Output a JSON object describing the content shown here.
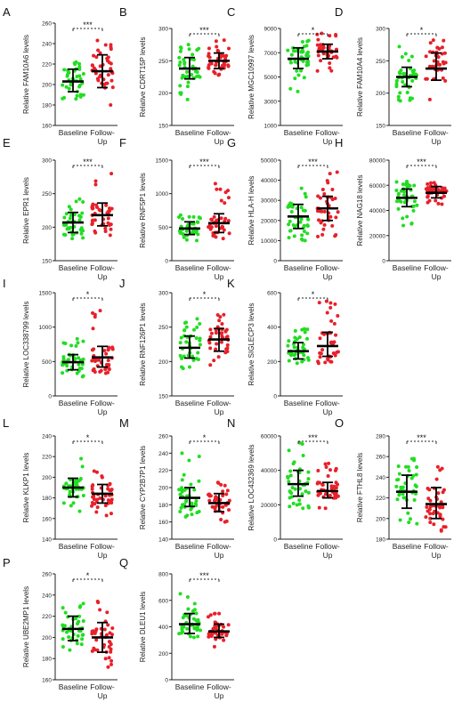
{
  "figure": {
    "colors": {
      "baseline": "#22dd22",
      "followup": "#e8202a",
      "bars": "#000000"
    }
  },
  "chart_data": [
    {
      "type": "scatter",
      "panel": "A",
      "ylabel": "Relative FAM10A6 levels",
      "ylim": [
        160,
        260
      ],
      "yticks": [
        160,
        180,
        200,
        220,
        240,
        260
      ],
      "ytick_labels": [
        "160",
        "180",
        "200",
        "220",
        "240",
        "260"
      ],
      "categories": [
        "Baseline",
        "Follow-Up"
      ],
      "significance": "***",
      "series": [
        {
          "name": "Baseline",
          "mean": 203,
          "sd_low": 193,
          "sd_high": 215,
          "min": 186,
          "max": 222,
          "n": 40
        },
        {
          "name": "Follow-Up",
          "mean": 213,
          "sd_low": 197,
          "sd_high": 229,
          "min": 180,
          "max": 243,
          "n": 40
        }
      ]
    },
    {
      "type": "scatter",
      "panel": "B",
      "ylabel": "Relative CDRT15P levels",
      "ylim": [
        150,
        300
      ],
      "yticks": [
        150,
        200,
        250,
        300
      ],
      "ytick_labels": [
        "150",
        "200",
        "250",
        "300"
      ],
      "categories": [
        "Baseline",
        "Follow-Up"
      ],
      "significance": "***",
      "series": [
        {
          "name": "Baseline",
          "mean": 238,
          "sd_low": 222,
          "sd_high": 255,
          "min": 190,
          "max": 275,
          "n": 40
        },
        {
          "name": "Follow-Up",
          "mean": 250,
          "sd_low": 238,
          "sd_high": 262,
          "min": 228,
          "max": 282,
          "n": 40
        }
      ]
    },
    {
      "type": "scatter",
      "panel": "C",
      "ylabel": "Relative MGC10997 levels",
      "ylim": [
        1000,
        9000
      ],
      "yticks": [
        1000,
        3000,
        5000,
        7000,
        9000
      ],
      "ytick_labels": [
        "1000",
        "3000",
        "5000",
        "7000",
        "9000"
      ],
      "categories": [
        "Baseline",
        "Follow-Up"
      ],
      "significance": "*",
      "series": [
        {
          "name": "Baseline",
          "mean": 6500,
          "sd_low": 5700,
          "sd_high": 7400,
          "min": 3800,
          "max": 8000,
          "n": 40
        },
        {
          "name": "Follow-Up",
          "mean": 7100,
          "sd_low": 6500,
          "sd_high": 7700,
          "min": 5500,
          "max": 8600,
          "n": 40
        }
      ]
    },
    {
      "type": "scatter",
      "panel": "D",
      "ylabel": "Relative FAM10A4 levels",
      "ylim": [
        150,
        300
      ],
      "yticks": [
        150,
        200,
        250,
        300
      ],
      "ytick_labels": [
        "150",
        "200",
        "250",
        "300"
      ],
      "categories": [
        "Baseline",
        "Follow-Up"
      ],
      "significance": "*",
      "series": [
        {
          "name": "Baseline",
          "mean": 225,
          "sd_low": 210,
          "sd_high": 240,
          "min": 188,
          "max": 272,
          "n": 40
        },
        {
          "name": "Follow-Up",
          "mean": 238,
          "sd_low": 220,
          "sd_high": 262,
          "min": 190,
          "max": 282,
          "n": 40
        }
      ]
    },
    {
      "type": "scatter",
      "panel": "E",
      "ylabel": "Relative EPR1 levels",
      "ylim": [
        150,
        300
      ],
      "yticks": [
        150,
        200,
        250,
        300
      ],
      "ytick_labels": [
        "150",
        "200",
        "250",
        "300"
      ],
      "categories": [
        "Baseline",
        "Follow-Up"
      ],
      "significance": "***",
      "series": [
        {
          "name": "Baseline",
          "mean": 207,
          "sd_low": 192,
          "sd_high": 222,
          "min": 183,
          "max": 242,
          "n": 40
        },
        {
          "name": "Follow-Up",
          "mean": 218,
          "sd_low": 202,
          "sd_high": 236,
          "min": 188,
          "max": 280,
          "n": 40
        }
      ]
    },
    {
      "type": "scatter",
      "panel": "F",
      "ylabel": "Relative RNF5P1 levels",
      "ylim": [
        0,
        1500
      ],
      "yticks": [
        0,
        500,
        1000,
        1500
      ],
      "ytick_labels": [
        "0",
        "500",
        "1000",
        "1500"
      ],
      "categories": [
        "Baseline",
        "Follow-Up"
      ],
      "significance": "***",
      "series": [
        {
          "name": "Baseline",
          "mean": 480,
          "sd_low": 390,
          "sd_high": 580,
          "min": 300,
          "max": 680,
          "n": 40
        },
        {
          "name": "Follow-Up",
          "mean": 560,
          "sd_low": 420,
          "sd_high": 700,
          "min": 330,
          "max": 1150,
          "n": 40
        }
      ]
    },
    {
      "type": "scatter",
      "panel": "G",
      "ylabel": "Relative HLA-H levels",
      "ylim": [
        0,
        50000
      ],
      "yticks": [
        0,
        10000,
        20000,
        30000,
        40000,
        50000
      ],
      "ytick_labels": [
        "0",
        "10000",
        "20000",
        "30000",
        "40000",
        "50000"
      ],
      "categories": [
        "Baseline",
        "Follow-Up"
      ],
      "significance": "***",
      "series": [
        {
          "name": "Baseline",
          "mean": 22000,
          "sd_low": 16000,
          "sd_high": 28000,
          "min": 10000,
          "max": 36000,
          "n": 40
        },
        {
          "name": "Follow-Up",
          "mean": 26000,
          "sd_low": 20000,
          "sd_high": 32000,
          "min": 12000,
          "max": 44000,
          "n": 40
        }
      ]
    },
    {
      "type": "scatter",
      "panel": "H",
      "ylabel": "Relative NAG18 levels",
      "ylim": [
        0,
        80000
      ],
      "yticks": [
        0,
        20000,
        40000,
        60000,
        80000
      ],
      "ytick_labels": [
        "0",
        "20000",
        "40000",
        "60000",
        "80000"
      ],
      "categories": [
        "Baseline",
        "Follow-Up"
      ],
      "significance": "***",
      "series": [
        {
          "name": "Baseline",
          "mean": 50000,
          "sd_low": 43000,
          "sd_high": 57000,
          "min": 28000,
          "max": 63000,
          "n": 40
        },
        {
          "name": "Follow-Up",
          "mean": 54000,
          "sd_low": 50000,
          "sd_high": 59000,
          "min": 45000,
          "max": 62000,
          "n": 40
        }
      ]
    },
    {
      "type": "scatter",
      "panel": "I",
      "ylabel": "Relative LOC338799 levels",
      "ylim": [
        0,
        1500
      ],
      "yticks": [
        0,
        500,
        1000,
        1500
      ],
      "ytick_labels": [
        "0",
        "500",
        "1000",
        "1500"
      ],
      "categories": [
        "Baseline",
        "Follow-Up"
      ],
      "significance": "*",
      "series": [
        {
          "name": "Baseline",
          "mean": 490,
          "sd_low": 380,
          "sd_high": 600,
          "min": 280,
          "max": 830,
          "n": 40
        },
        {
          "name": "Follow-Up",
          "mean": 560,
          "sd_low": 420,
          "sd_high": 720,
          "min": 330,
          "max": 1240,
          "n": 40
        }
      ]
    },
    {
      "type": "scatter",
      "panel": "J",
      "ylabel": "Relative RNF126P1 levels",
      "ylim": [
        150,
        300
      ],
      "yticks": [
        150,
        200,
        250,
        300
      ],
      "ytick_labels": [
        "150",
        "200",
        "250",
        "300"
      ],
      "categories": [
        "Baseline",
        "Follow-Up"
      ],
      "significance": "*",
      "series": [
        {
          "name": "Baseline",
          "mean": 220,
          "sd_low": 205,
          "sd_high": 237,
          "min": 190,
          "max": 262,
          "n": 40
        },
        {
          "name": "Follow-Up",
          "mean": 232,
          "sd_low": 215,
          "sd_high": 248,
          "min": 195,
          "max": 268,
          "n": 40
        }
      ]
    },
    {
      "type": "scatter",
      "panel": "K",
      "ylabel": "Relative SIGLECP3 levels",
      "ylim": [
        0,
        600
      ],
      "yticks": [
        0,
        200,
        400,
        600
      ],
      "ytick_labels": [
        "0",
        "200",
        "400",
        "600"
      ],
      "categories": [
        "Baseline",
        "Follow-Up"
      ],
      "significance": "*",
      "series": [
        {
          "name": "Baseline",
          "mean": 260,
          "sd_low": 215,
          "sd_high": 310,
          "min": 190,
          "max": 390,
          "n": 40
        },
        {
          "name": "Follow-Up",
          "mean": 290,
          "sd_low": 230,
          "sd_high": 370,
          "min": 190,
          "max": 550,
          "n": 40
        }
      ]
    },
    {
      "type": "scatter",
      "panel": "L",
      "ylabel": "Relative KLKP1 levels",
      "ylim": [
        140,
        240
      ],
      "yticks": [
        140,
        160,
        180,
        200,
        220,
        240
      ],
      "ytick_labels": [
        "140",
        "160",
        "180",
        "200",
        "220",
        "240"
      ],
      "categories": [
        "Baseline",
        "Follow-Up"
      ],
      "significance": "*",
      "series": [
        {
          "name": "Baseline",
          "mean": 190,
          "sd_low": 181,
          "sd_high": 199,
          "min": 167,
          "max": 218,
          "n": 40
        },
        {
          "name": "Follow-Up",
          "mean": 184,
          "sd_low": 175,
          "sd_high": 193,
          "min": 163,
          "max": 206,
          "n": 40
        }
      ]
    },
    {
      "type": "scatter",
      "panel": "M",
      "ylabel": "Relative CYP2B7P1 levels",
      "ylim": [
        140,
        260
      ],
      "yticks": [
        140,
        160,
        180,
        200,
        220,
        240,
        260
      ],
      "ytick_labels": [
        "140",
        "160",
        "180",
        "200",
        "220",
        "240",
        "260"
      ],
      "categories": [
        "Baseline",
        "Follow-Up"
      ],
      "significance": "*",
      "series": [
        {
          "name": "Baseline",
          "mean": 188,
          "sd_low": 178,
          "sd_high": 200,
          "min": 166,
          "max": 240,
          "n": 40
        },
        {
          "name": "Follow-Up",
          "mean": 182,
          "sd_low": 172,
          "sd_high": 193,
          "min": 160,
          "max": 206,
          "n": 40
        }
      ]
    },
    {
      "type": "scatter",
      "panel": "N",
      "ylabel": "Relative LOC432369 levels",
      "ylim": [
        0,
        60000
      ],
      "yticks": [
        0,
        20000,
        40000,
        60000
      ],
      "ytick_labels": [
        "0",
        "20000",
        "40000",
        "60000"
      ],
      "categories": [
        "Baseline",
        "Follow-Up"
      ],
      "significance": "***",
      "series": [
        {
          "name": "Baseline",
          "mean": 32000,
          "sd_low": 25000,
          "sd_high": 40000,
          "min": 18000,
          "max": 56000,
          "n": 40
        },
        {
          "name": "Follow-Up",
          "mean": 28000,
          "sd_low": 24000,
          "sd_high": 33000,
          "min": 18000,
          "max": 44000,
          "n": 40
        }
      ]
    },
    {
      "type": "scatter",
      "panel": "O",
      "ylabel": "Relative FTHL8 levels",
      "ylim": [
        180,
        280
      ],
      "yticks": [
        180,
        200,
        220,
        240,
        260,
        280
      ],
      "ytick_labels": [
        "180",
        "200",
        "220",
        "240",
        "260",
        "280"
      ],
      "categories": [
        "Baseline",
        "Follow-Up"
      ],
      "significance": "***",
      "series": [
        {
          "name": "Baseline",
          "mean": 226,
          "sd_low": 210,
          "sd_high": 242,
          "min": 195,
          "max": 258,
          "n": 40
        },
        {
          "name": "Follow-Up",
          "mean": 214,
          "sd_low": 200,
          "sd_high": 230,
          "min": 188,
          "max": 250,
          "n": 40
        }
      ]
    },
    {
      "type": "scatter",
      "panel": "P",
      "ylabel": "Relative UBE2MP1 levels",
      "ylim": [
        160,
        260
      ],
      "yticks": [
        160,
        180,
        200,
        220,
        240,
        260
      ],
      "ytick_labels": [
        "160",
        "180",
        "200",
        "220",
        "240",
        "260"
      ],
      "categories": [
        "Baseline",
        "Follow-Up"
      ],
      "significance": "*",
      "series": [
        {
          "name": "Baseline",
          "mean": 208,
          "sd_low": 197,
          "sd_high": 220,
          "min": 188,
          "max": 232,
          "n": 40
        },
        {
          "name": "Follow-Up",
          "mean": 200,
          "sd_low": 186,
          "sd_high": 214,
          "min": 172,
          "max": 234,
          "n": 40
        }
      ]
    },
    {
      "type": "scatter",
      "panel": "Q",
      "ylabel": "Relative DLEU1 levels",
      "ylim": [
        0,
        800
      ],
      "yticks": [
        0,
        200,
        400,
        600,
        800
      ],
      "ytick_labels": [
        "0",
        "200",
        "400",
        "600",
        "800"
      ],
      "categories": [
        "Baseline",
        "Follow-Up"
      ],
      "significance": "***",
      "series": [
        {
          "name": "Baseline",
          "mean": 420,
          "sd_low": 350,
          "sd_high": 500,
          "min": 320,
          "max": 650,
          "n": 40
        },
        {
          "name": "Follow-Up",
          "mean": 365,
          "sd_low": 320,
          "sd_high": 420,
          "min": 250,
          "max": 500,
          "n": 40
        }
      ]
    }
  ]
}
